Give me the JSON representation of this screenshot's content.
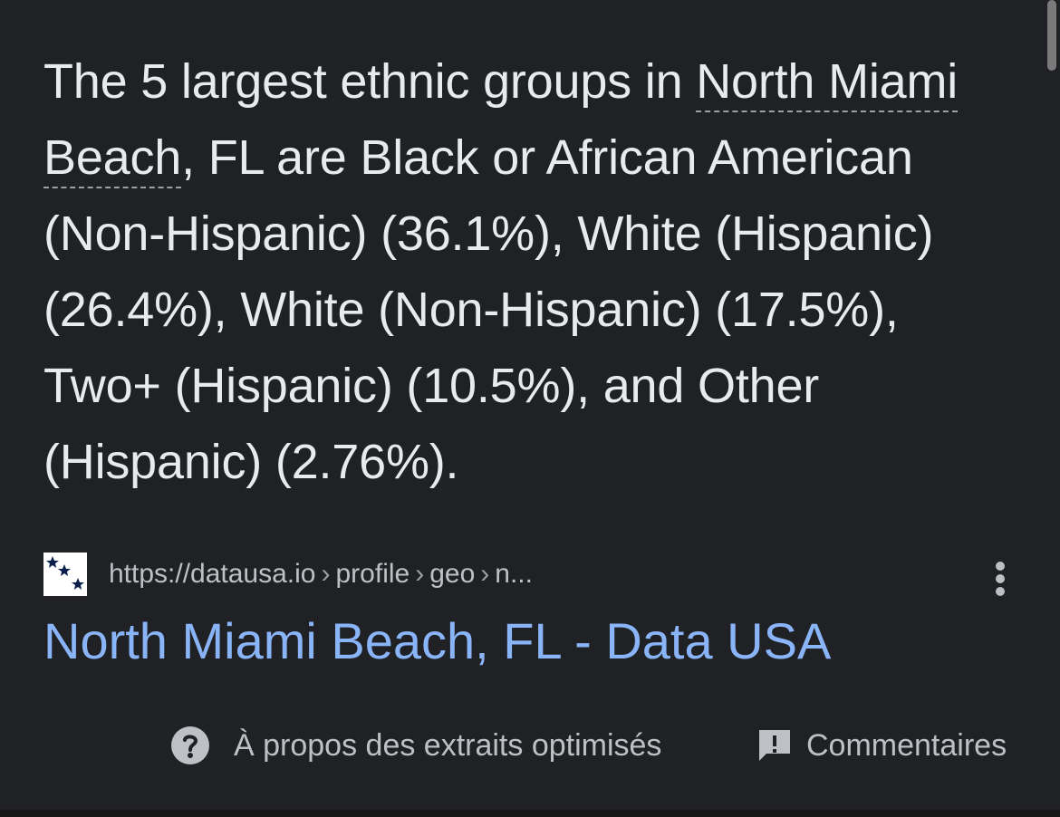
{
  "snippet": {
    "text_before": "The 5 largest ethnic groups in ",
    "entity": "North Miami Beach",
    "text_after": ", FL are Black or African American (Non-Hispanic) (36.1%), White (Hispanic) (26.4%), White (Non-Hispanic) (17.5%), Two+ (Hispanic) (10.5%), and Other (Hispanic) (2.76%)."
  },
  "source": {
    "favicon_icon": "data-usa-stars-icon",
    "url_base": "https://datausa.io",
    "path_1": "profile",
    "path_2": "geo",
    "path_3": "n...",
    "more_icon": "more-vert-icon",
    "title": "North Miami Beach, FL - Data USA"
  },
  "footer": {
    "about_icon": "help-circle-icon",
    "about_label": "À propos des extraits optimisés",
    "feedback_icon": "feedback-icon",
    "feedback_label": "Commentaires"
  },
  "colors": {
    "background": "#202124",
    "text": "#e8eaed",
    "link": "#8ab4f8",
    "muted": "#bdc1c6"
  }
}
